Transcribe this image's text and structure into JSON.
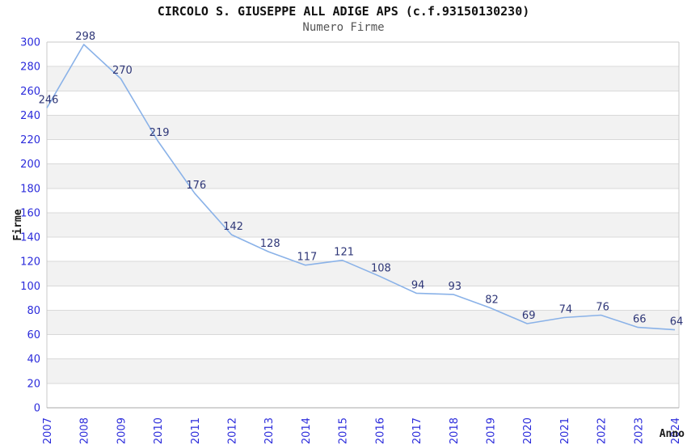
{
  "chart_data": {
    "type": "line",
    "title": "CIRCOLO S. GIUSEPPE ALL ADIGE APS (c.f.93150130230)",
    "subtitle": "Numero Firme",
    "xlabel": "Anno",
    "ylabel": "Firme",
    "categories": [
      "2007",
      "2008",
      "2009",
      "2010",
      "2011",
      "2012",
      "2013",
      "2014",
      "2015",
      "2016",
      "2017",
      "2018",
      "2019",
      "2020",
      "2021",
      "2022",
      "2023",
      "2024"
    ],
    "values": [
      246,
      298,
      270,
      219,
      176,
      142,
      128,
      117,
      121,
      108,
      94,
      93,
      82,
      69,
      74,
      76,
      66,
      64
    ],
    "ylim": [
      0,
      300
    ],
    "ytick_step": 20,
    "legend": "none",
    "grid": "horizontal-bands-alternating",
    "point_labels_visible": true,
    "colors": {
      "line": "#8ab2e8",
      "tick_label": "#2b2bdb",
      "point_label": "#2e3677",
      "band": "#f2f2f2",
      "gridline": "#d9d9d9",
      "frame": "#c9c9c9",
      "bottom_axis": "#aaaaaa",
      "title": "#111111",
      "subtitle": "#555555",
      "axis_title": "#1a1a1a",
      "background": "#ffffff"
    }
  }
}
